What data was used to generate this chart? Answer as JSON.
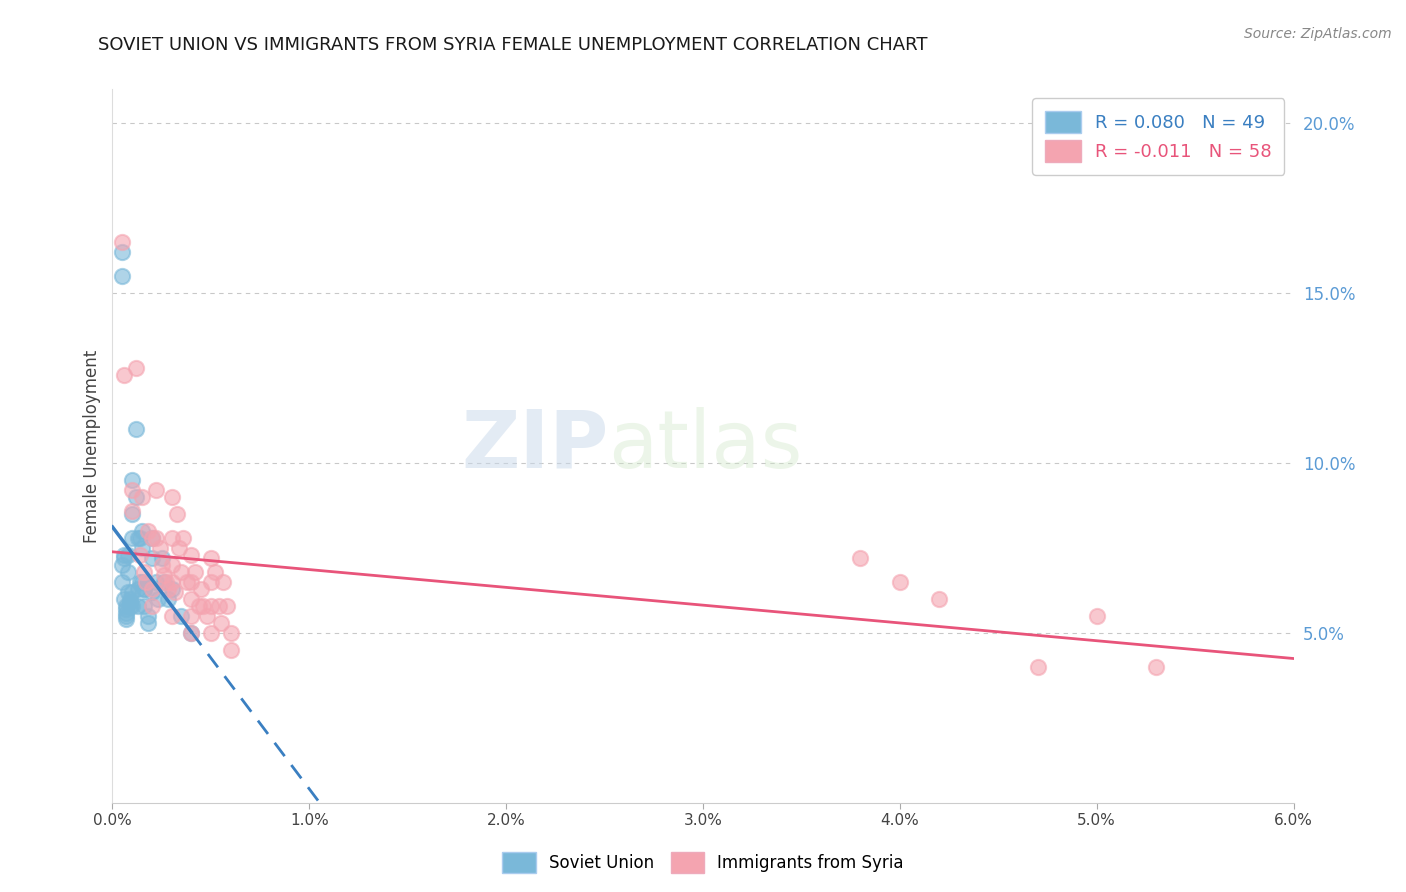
{
  "title": "SOVIET UNION VS IMMIGRANTS FROM SYRIA FEMALE UNEMPLOYMENT CORRELATION CHART",
  "source_text": "Source: ZipAtlas.com",
  "ylabel": "Female Unemployment",
  "xlim": [
    0.0,
    0.06
  ],
  "ylim": [
    0.0,
    0.21
  ],
  "xticks": [
    0.0,
    0.01,
    0.02,
    0.03,
    0.04,
    0.05,
    0.06
  ],
  "xticklabels": [
    "0.0%",
    "1.0%",
    "2.0%",
    "3.0%",
    "4.0%",
    "5.0%",
    "6.0%"
  ],
  "yticks_right": [
    0.05,
    0.1,
    0.15,
    0.2
  ],
  "yticklabels_right": [
    "5.0%",
    "10.0%",
    "15.0%",
    "20.0%"
  ],
  "soviet_color": "#7ab8d9",
  "syria_color": "#f4a4b0",
  "soviet_line_color": "#3a7fc1",
  "syria_line_color": "#e8547a",
  "soviet_R": 0.08,
  "soviet_N": 49,
  "syria_R": -0.011,
  "syria_N": 58,
  "legend_label_soviet": "Soviet Union",
  "legend_label_syria": "Immigrants from Syria",
  "watermark_zip": "ZIP",
  "watermark_atlas": "atlas",
  "background_color": "#ffffff",
  "grid_color": "#bbbbbb",
  "axis_label_color": "#5b9bd5",
  "title_color": "#1a1a1a",
  "soviet_x": [
    0.0005,
    0.0005,
    0.0005,
    0.0005,
    0.0006,
    0.0006,
    0.0006,
    0.0007,
    0.0007,
    0.0007,
    0.0007,
    0.0007,
    0.0008,
    0.0008,
    0.0008,
    0.0009,
    0.0009,
    0.0009,
    0.001,
    0.001,
    0.001,
    0.001,
    0.001,
    0.0012,
    0.0012,
    0.0013,
    0.0013,
    0.0013,
    0.0014,
    0.0014,
    0.0015,
    0.0015,
    0.0015,
    0.0016,
    0.0016,
    0.0016,
    0.0018,
    0.0018,
    0.002,
    0.002,
    0.002,
    0.0022,
    0.0023,
    0.0025,
    0.0026,
    0.0028,
    0.003,
    0.0035,
    0.004
  ],
  "soviet_y": [
    0.162,
    0.155,
    0.07,
    0.065,
    0.073,
    0.072,
    0.06,
    0.058,
    0.057,
    0.056,
    0.055,
    0.054,
    0.073,
    0.068,
    0.062,
    0.06,
    0.059,
    0.058,
    0.095,
    0.085,
    0.078,
    0.062,
    0.058,
    0.11,
    0.09,
    0.078,
    0.063,
    0.058,
    0.078,
    0.065,
    0.08,
    0.075,
    0.065,
    0.063,
    0.063,
    0.058,
    0.055,
    0.053,
    0.078,
    0.072,
    0.062,
    0.065,
    0.06,
    0.072,
    0.065,
    0.06,
    0.063,
    0.055,
    0.05
  ],
  "syria_x": [
    0.0005,
    0.0006,
    0.001,
    0.001,
    0.0012,
    0.0014,
    0.0015,
    0.0016,
    0.0017,
    0.0018,
    0.002,
    0.002,
    0.002,
    0.0022,
    0.0022,
    0.0024,
    0.0025,
    0.0026,
    0.0027,
    0.0028,
    0.003,
    0.003,
    0.003,
    0.003,
    0.003,
    0.0032,
    0.0033,
    0.0034,
    0.0035,
    0.0036,
    0.0038,
    0.004,
    0.004,
    0.004,
    0.004,
    0.004,
    0.0042,
    0.0044,
    0.0045,
    0.0046,
    0.0048,
    0.005,
    0.005,
    0.005,
    0.005,
    0.0052,
    0.0054,
    0.0055,
    0.0056,
    0.0058,
    0.006,
    0.006,
    0.038,
    0.04,
    0.042,
    0.047,
    0.05,
    0.053
  ],
  "syria_y": [
    0.165,
    0.126,
    0.092,
    0.086,
    0.128,
    0.073,
    0.09,
    0.068,
    0.065,
    0.08,
    0.078,
    0.063,
    0.058,
    0.092,
    0.078,
    0.075,
    0.07,
    0.067,
    0.065,
    0.063,
    0.09,
    0.078,
    0.07,
    0.065,
    0.055,
    0.062,
    0.085,
    0.075,
    0.068,
    0.078,
    0.065,
    0.073,
    0.065,
    0.06,
    0.055,
    0.05,
    0.068,
    0.058,
    0.063,
    0.058,
    0.055,
    0.072,
    0.065,
    0.058,
    0.05,
    0.068,
    0.058,
    0.053,
    0.065,
    0.058,
    0.05,
    0.045,
    0.072,
    0.065,
    0.06,
    0.04,
    0.055,
    0.04
  ]
}
